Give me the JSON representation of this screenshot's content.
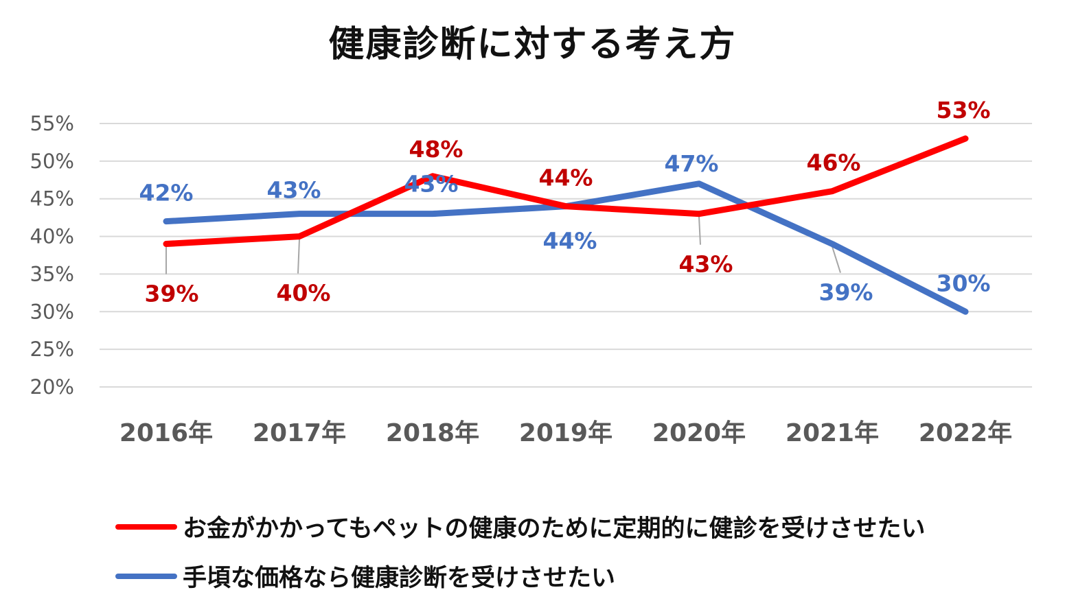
{
  "chart_data": {
    "type": "line",
    "title": "健康診断に対する考え方",
    "categories": [
      "2016年",
      "2017年",
      "2018年",
      "2019年",
      "2020年",
      "2021年",
      "2022年"
    ],
    "ylim": [
      20,
      55
    ],
    "yticks": [
      "55%",
      "50%",
      "45%",
      "40%",
      "35%",
      "30%",
      "25%",
      "20%"
    ],
    "ytick_values": [
      55,
      50,
      45,
      40,
      35,
      30,
      25,
      20
    ],
    "grid": true,
    "legend_position": "bottom-left",
    "series": [
      {
        "name": "お金がかかってもペットの健康のために定期的に健診を受けさせたい",
        "color": "#ff0000",
        "label_color": "#c00000",
        "values": [
          39,
          40,
          48,
          44,
          43,
          46,
          53
        ],
        "labels": [
          "39%",
          "40%",
          "48%",
          "44%",
          "43%",
          "46%",
          "53%"
        ]
      },
      {
        "name": "手頃な価格なら健康診断を受けさせたい",
        "color": "#4472c4",
        "label_color": "#4472c4",
        "values": [
          42,
          43,
          43,
          44,
          47,
          39,
          30
        ],
        "labels": [
          "42%",
          "43%",
          "43%",
          "44%",
          "47%",
          "39%",
          "30%"
        ]
      }
    ]
  }
}
